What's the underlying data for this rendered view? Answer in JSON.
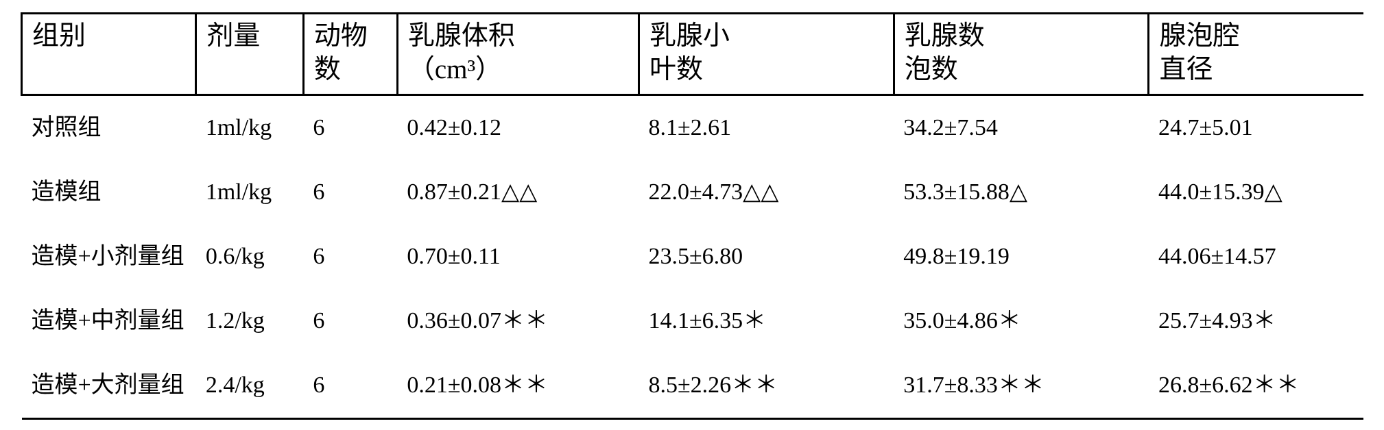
{
  "table": {
    "headers": [
      {
        "line1": "组别",
        "line2": ""
      },
      {
        "line1": "剂量",
        "line2": ""
      },
      {
        "line1": "动物",
        "line2": "数"
      },
      {
        "line1": "乳腺体积",
        "line2": "（cm³）"
      },
      {
        "line1": "乳腺小",
        "line2": "叶数"
      },
      {
        "line1": "乳腺数",
        "line2": "泡数"
      },
      {
        "line1": "腺泡腔",
        "line2": "直径"
      }
    ],
    "rows": [
      {
        "group": "对照组",
        "dose": "1ml/kg",
        "n": "6",
        "vol": "0.42±0.12",
        "lobule": "8.1±2.61",
        "acini": "34.2±7.54",
        "diam": "24.7±5.01"
      },
      {
        "group": "造模组",
        "dose": "1ml/kg",
        "n": "6",
        "vol": "0.87±0.21△△",
        "lobule": "22.0±4.73△△",
        "acini": "53.3±15.88△",
        "diam": "44.0±15.39△"
      },
      {
        "group": "造模+小剂量组",
        "dose": "0.6/kg",
        "n": "6",
        "vol": "0.70±0.11",
        "lobule": "23.5±6.80",
        "acini": "49.8±19.19",
        "diam": "44.06±14.57"
      },
      {
        "group": "造模+中剂量组",
        "dose": "1.2/kg",
        "n": "6",
        "vol": "0.36±0.07＊＊",
        "lobule": "14.1±6.35＊",
        "acini": "35.0±4.86＊",
        "diam": "25.7±4.93＊"
      },
      {
        "group": "造模+大剂量组",
        "dose": "2.4/kg",
        "n": "6",
        "vol": "0.21±0.08＊＊",
        "lobule": "8.5±2.26＊＊",
        "acini": "31.7±8.33＊＊",
        "diam": "26.8±6.62＊＊"
      }
    ]
  }
}
